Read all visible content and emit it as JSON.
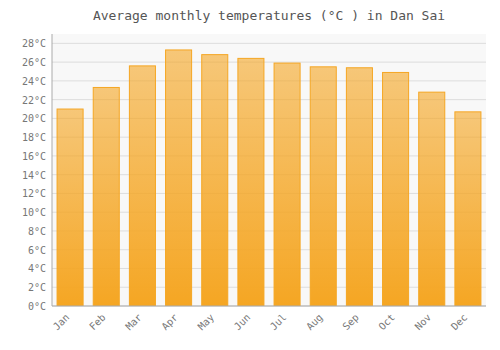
{
  "chart_data": {
    "type": "bar",
    "title": "Average monthly temperatures (°C ) in Dan Sai",
    "categories": [
      "Jan",
      "Feb",
      "Mar",
      "Apr",
      "May",
      "Jun",
      "Jul",
      "Aug",
      "Sep",
      "Oct",
      "Nov",
      "Dec"
    ],
    "values": [
      21.0,
      23.3,
      25.6,
      27.3,
      26.8,
      26.4,
      25.9,
      25.5,
      25.4,
      24.9,
      22.8,
      20.7
    ],
    "color": "#F5A623",
    "ylim": [
      0,
      29
    ],
    "yticks": [
      {
        "value": 0,
        "label": "0°C"
      },
      {
        "value": 2,
        "label": "2°C"
      },
      {
        "value": 4,
        "label": "4°C"
      },
      {
        "value": 6,
        "label": "6°C"
      },
      {
        "value": 8,
        "label": "8°C"
      },
      {
        "value": 10,
        "label": "10°C"
      },
      {
        "value": 12,
        "label": "12°C"
      },
      {
        "value": 14,
        "label": "14°C"
      },
      {
        "value": 16,
        "label": "16°C"
      },
      {
        "value": 18,
        "label": "18°C"
      },
      {
        "value": 20,
        "label": "20°C"
      },
      {
        "value": 22,
        "label": "22°C"
      },
      {
        "value": 24,
        "label": "24°C"
      },
      {
        "value": 26,
        "label": "26°C"
      },
      {
        "value": 28,
        "label": "28°C"
      }
    ],
    "grid": true
  }
}
